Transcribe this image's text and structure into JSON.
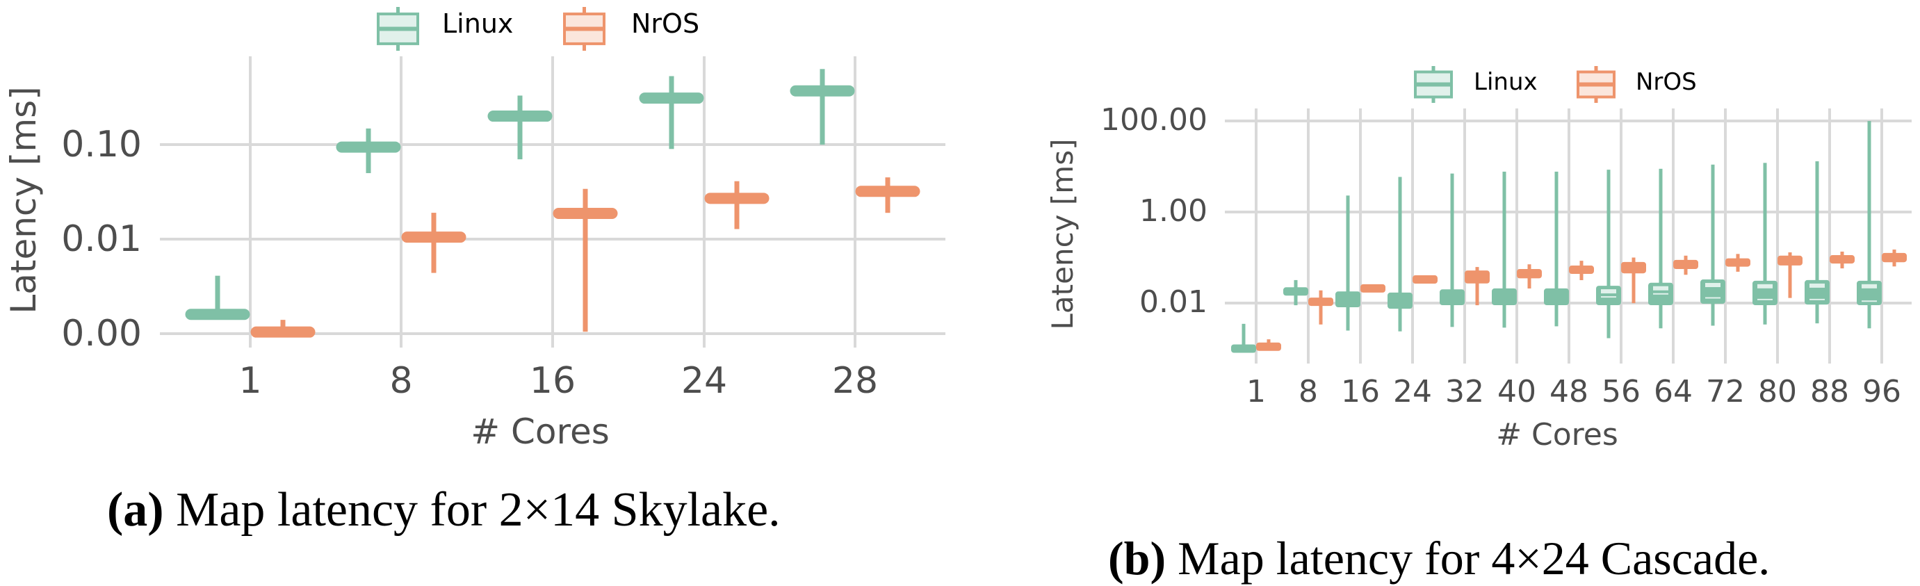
{
  "colors": {
    "linux": "#7fc0a6",
    "linux_fill": "#e1f1eb",
    "nros": "#ee946c",
    "nros_fill": "#fbe6dc",
    "grid": "#d9d9d9",
    "tick_text": "#4d4d4d"
  },
  "panels": [
    {
      "id": "a",
      "legend": {
        "items": [
          {
            "label": "Linux",
            "icon": "boxplot-legend-icon"
          },
          {
            "label": "NrOS",
            "icon": "boxplot-legend-icon"
          }
        ]
      },
      "ylabel": "Latency [ms]",
      "xlabel": "# Cores",
      "yticks": [
        "0.10",
        "0.01",
        "0.00"
      ],
      "xticks": [
        "1",
        "8",
        "16",
        "24",
        "28"
      ],
      "caption_prefix": "(a)",
      "caption_text": " Map latency for 2×14 Skylake."
    },
    {
      "id": "b",
      "legend": {
        "items": [
          {
            "label": "Linux",
            "icon": "boxplot-legend-icon"
          },
          {
            "label": "NrOS",
            "icon": "boxplot-legend-icon"
          }
        ]
      },
      "ylabel": "Latency [ms]",
      "xlabel": "# Cores",
      "yticks": [
        "100.00",
        "1.00",
        "0.01"
      ],
      "xticks": [
        "1",
        "8",
        "16",
        "24",
        "32",
        "40",
        "48",
        "56",
        "64",
        "72",
        "80",
        "88",
        "96"
      ],
      "caption_prefix": "(b)",
      "caption_text": " Map latency for 4×24 Cascade."
    }
  ],
  "chart_data": [
    {
      "type": "box",
      "title": "(a) Map latency for 2×14 Skylake.",
      "xlabel": "# Cores",
      "ylabel": "Latency [ms]",
      "yscale": "log",
      "ylim": [
        0.001,
        0.9
      ],
      "yticks": [
        0.001,
        0.01,
        0.1
      ],
      "ytick_labels": [
        "0.00",
        "0.01",
        "0.10"
      ],
      "grid": true,
      "legend_position": "top-center",
      "categories": [
        "1",
        "8",
        "16",
        "24",
        "28"
      ],
      "series": [
        {
          "name": "Linux",
          "color": "#7fc0a6",
          "boxes": [
            {
              "q1": 0.0015,
              "median": 0.0016,
              "q3": 0.0017,
              "whisker_low": 0.0015,
              "whisker_high": 0.0041
            },
            {
              "q1": 0.088,
              "median": 0.094,
              "q3": 0.1,
              "whisker_low": 0.05,
              "whisker_high": 0.148
            },
            {
              "q1": 0.19,
              "median": 0.2,
              "q3": 0.215,
              "whisker_low": 0.07,
              "whisker_high": 0.33
            },
            {
              "q1": 0.29,
              "median": 0.31,
              "q3": 0.33,
              "whisker_low": 0.09,
              "whisker_high": 0.53
            },
            {
              "q1": 0.35,
              "median": 0.37,
              "q3": 0.39,
              "whisker_low": 0.1,
              "whisker_high": 0.63
            }
          ]
        },
        {
          "name": "NrOS",
          "color": "#ee946c",
          "boxes": [
            {
              "q1": 0.00098,
              "median": 0.00104,
              "q3": 0.0011,
              "whisker_low": 0.00098,
              "whisker_high": 0.0014
            },
            {
              "q1": 0.0099,
              "median": 0.0105,
              "q3": 0.0112,
              "whisker_low": 0.0044,
              "whisker_high": 0.019
            },
            {
              "q1": 0.0176,
              "median": 0.0187,
              "q3": 0.0198,
              "whisker_low": 0.00105,
              "whisker_high": 0.034
            },
            {
              "q1": 0.0255,
              "median": 0.027,
              "q3": 0.0286,
              "whisker_low": 0.0128,
              "whisker_high": 0.041
            },
            {
              "q1": 0.03,
              "median": 0.032,
              "q3": 0.034,
              "whisker_low": 0.019,
              "whisker_high": 0.045
            }
          ]
        }
      ]
    },
    {
      "type": "box",
      "title": "(b) Map latency for 4×24 Cascade.",
      "xlabel": "# Cores",
      "ylabel": "Latency [ms]",
      "yscale": "log",
      "ylim": [
        0.0004,
        300
      ],
      "yticks": [
        0.01,
        1,
        100
      ],
      "ytick_labels": [
        "0.01",
        "1.00",
        "100.00"
      ],
      "grid": true,
      "legend_position": "top-center",
      "categories": [
        "1",
        "8",
        "16",
        "24",
        "32",
        "40",
        "48",
        "56",
        "64",
        "72",
        "80",
        "88",
        "96"
      ],
      "series": [
        {
          "name": "Linux",
          "color": "#7fc0a6",
          "boxes": [
            {
              "q1": 0.0009,
              "median": 0.001,
              "q3": 0.0011,
              "whisker_low": 0.0009,
              "whisker_high": 0.0035
            },
            {
              "q1": 0.016,
              "median": 0.018,
              "q3": 0.02,
              "whisker_low": 0.009,
              "whisker_high": 0.032
            },
            {
              "q1": 0.0081,
              "median": 0.011,
              "q3": 0.018,
              "whisker_low": 0.0025,
              "whisker_high": 2.3
            },
            {
              "q1": 0.0075,
              "median": 0.01,
              "q3": 0.017,
              "whisker_low": 0.0024,
              "whisker_high": 5.9
            },
            {
              "q1": 0.009,
              "median": 0.012,
              "q3": 0.02,
              "whisker_low": 0.003,
              "whisker_high": 7.0
            },
            {
              "q1": 0.009,
              "median": 0.012,
              "q3": 0.021,
              "whisker_low": 0.0029,
              "whisker_high": 7.7
            },
            {
              "q1": 0.009,
              "median": 0.012,
              "q3": 0.021,
              "whisker_low": 0.0031,
              "whisker_high": 7.7
            },
            {
              "q1": 0.009,
              "median": 0.018,
              "q3": 0.024,
              "whisker_low": 0.0017,
              "whisker_high": 8.5
            },
            {
              "q1": 0.009,
              "median": 0.02,
              "q3": 0.028,
              "whisker_low": 0.0028,
              "whisker_high": 8.9
            },
            {
              "q1": 0.0097,
              "median": 0.013,
              "q3": 0.033,
              "whisker_low": 0.0032,
              "whisker_high": 11
            },
            {
              "q1": 0.009,
              "median": 0.012,
              "q3": 0.031,
              "whisker_low": 0.0034,
              "whisker_high": 12
            },
            {
              "q1": 0.0093,
              "median": 0.012,
              "q3": 0.032,
              "whisker_low": 0.0036,
              "whisker_high": 13
            },
            {
              "q1": 0.009,
              "median": 0.011,
              "q3": 0.031,
              "whisker_low": 0.0028,
              "whisker_high": 100
            }
          ]
        },
        {
          "name": "NrOS",
          "color": "#ee946c",
          "boxes": [
            {
              "q1": 0.001,
              "median": 0.0011,
              "q3": 0.0012,
              "whisker_low": 0.001,
              "whisker_high": 0.0016
            },
            {
              "q1": 0.0098,
              "median": 0.0107,
              "q3": 0.0117,
              "whisker_low": 0.0034,
              "whisker_high": 0.019
            },
            {
              "q1": 0.019,
              "median": 0.021,
              "q3": 0.023,
              "whisker_low": 0.019,
              "whisker_high": 0.023
            },
            {
              "q1": 0.03,
              "median": 0.033,
              "q3": 0.036,
              "whisker_low": 0.03,
              "whisker_high": 0.036
            },
            {
              "q1": 0.027,
              "median": 0.04,
              "q3": 0.052,
              "whisker_low": 0.009,
              "whisker_high": 0.062
            },
            {
              "q1": 0.035,
              "median": 0.045,
              "q3": 0.056,
              "whisker_low": 0.021,
              "whisker_high": 0.071
            },
            {
              "q1": 0.045,
              "median": 0.054,
              "q3": 0.062,
              "whisker_low": 0.032,
              "whisker_high": 0.085
            },
            {
              "q1": 0.045,
              "median": 0.06,
              "q3": 0.08,
              "whisker_low": 0.01,
              "whisker_high": 0.1
            },
            {
              "q1": 0.056,
              "median": 0.07,
              "q3": 0.089,
              "whisker_low": 0.042,
              "whisker_high": 0.11
            },
            {
              "q1": 0.064,
              "median": 0.078,
              "q3": 0.095,
              "whisker_low": 0.049,
              "whisker_high": 0.12
            },
            {
              "q1": 0.067,
              "median": 0.085,
              "q3": 0.11,
              "whisker_low": 0.013,
              "whisker_high": 0.13
            },
            {
              "q1": 0.074,
              "median": 0.09,
              "q3": 0.113,
              "whisker_low": 0.058,
              "whisker_high": 0.135
            },
            {
              "q1": 0.079,
              "median": 0.1,
              "q3": 0.126,
              "whisker_low": 0.064,
              "whisker_high": 0.15
            }
          ]
        }
      ]
    }
  ]
}
